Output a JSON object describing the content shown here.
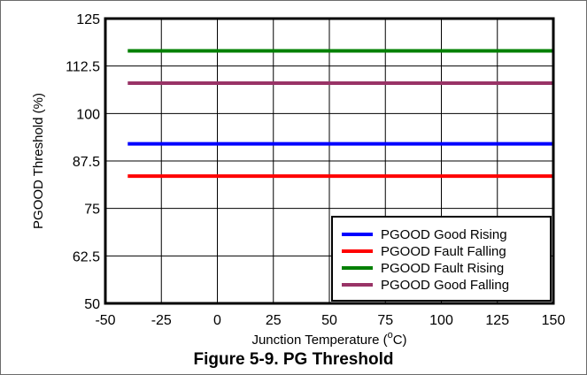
{
  "caption": "Figure 5-9. PG Threshold",
  "chart_data": {
    "type": "line",
    "title": "",
    "xlabel": "Junction Temperature (",
    "xlabel_sup": "o",
    "xlabel_suffix": "C)",
    "ylabel": "PGOOD Threshold (%)",
    "xlim": [
      -50,
      150
    ],
    "ylim": [
      50,
      125
    ],
    "x_ticks": [
      -50,
      -25,
      0,
      25,
      50,
      75,
      100,
      125,
      150
    ],
    "x_tick_labels": [
      "-50",
      "-25",
      "0",
      "25",
      "50",
      "75",
      "100",
      "125",
      "150"
    ],
    "y_ticks": [
      50,
      62.5,
      75,
      87.5,
      100,
      112.5,
      125
    ],
    "y_tick_labels": [
      "50",
      "62.5",
      "75",
      "87.5",
      "100",
      "112.5",
      "125"
    ],
    "grid": true,
    "legend_position": "bottom-right",
    "x": [
      -40,
      150
    ],
    "series": [
      {
        "name": "PGOOD Good Rising",
        "color": "#0000ff",
        "values": [
          92,
          92
        ]
      },
      {
        "name": "PGOOD Fault Falling",
        "color": "#ff0000",
        "values": [
          83.5,
          83.5
        ]
      },
      {
        "name": "PGOOD Fault Rising",
        "color": "#008000",
        "values": [
          116.5,
          116.5
        ]
      },
      {
        "name": "PGOOD Good Falling",
        "color": "#993366",
        "values": [
          108,
          108
        ]
      }
    ]
  }
}
